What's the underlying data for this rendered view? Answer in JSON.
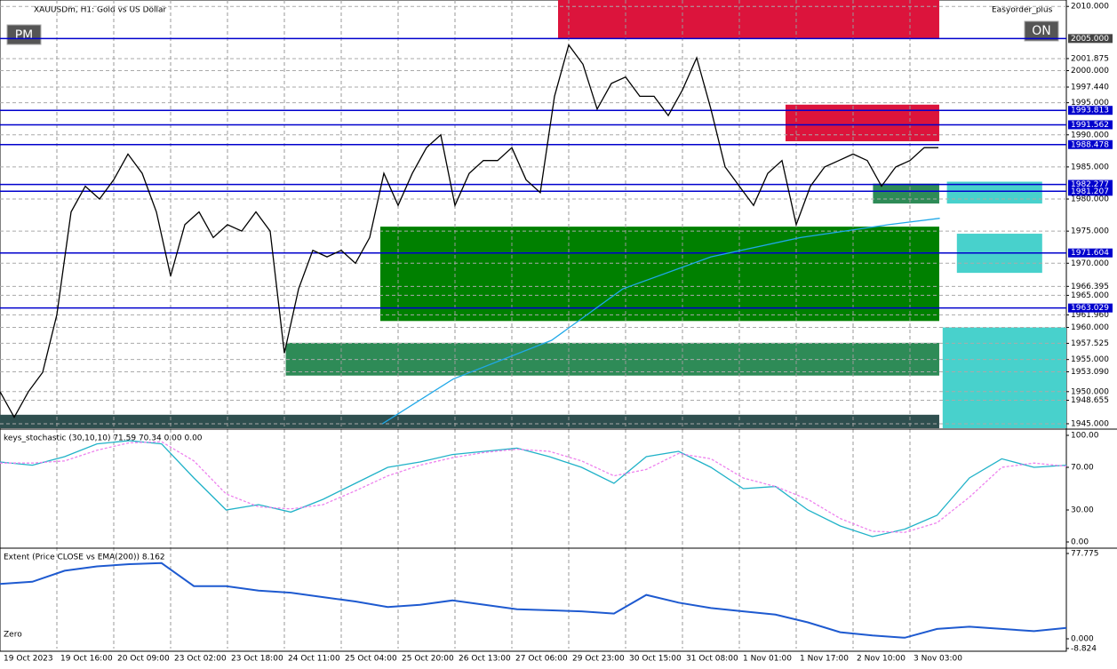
{
  "header": {
    "symbol_title": "XAUUSDm, H1: Gold vs US Dollar",
    "expert": "Easyorder_plus",
    "buttons": [
      "PM",
      "ON"
    ]
  },
  "chart_data": [
    {
      "type": "line",
      "xlim": [
        0,
        75
      ],
      "ylim": [
        1944.3,
        2011
      ],
      "grid": true,
      "series": [
        {
          "color": "#000000",
          "values": [
            1950,
            1946,
            1950,
            1953,
            1962,
            1978,
            1982,
            1980,
            1983,
            1987,
            1984,
            1978,
            1968,
            1976,
            1978,
            1974,
            1976,
            1975,
            1978,
            1975,
            1956,
            1966,
            1972,
            1971,
            1972,
            1970,
            1974,
            1984,
            1979,
            1984,
            1988,
            1990,
            1979,
            1984,
            1986,
            1986,
            1988,
            1983,
            1981,
            1996,
            2004,
            2001,
            1994,
            1998,
            1999,
            1996,
            1996,
            1993,
            1997,
            2002,
            1994,
            1985,
            1982,
            1979,
            1984,
            1986,
            1976,
            1982,
            1985,
            1986,
            1987,
            1986,
            1982,
            1985,
            1986,
            1988,
            1988
          ]
        },
        {
          "color": "#1fa8e8",
          "x": [
            26.9,
            31.9,
            38.8,
            43.8,
            50,
            56.3,
            62.5,
            66.1
          ],
          "values": [
            1945,
            1952,
            1958,
            1966,
            1971,
            1974,
            1976,
            1977
          ]
        }
      ],
      "yticks": [
        {
          "value": 2010,
          "label": "2010.000"
        },
        {
          "value": 2001.875,
          "label": "2001.875"
        },
        {
          "value": 2000,
          "label": "2000.000"
        },
        {
          "value": 1997.44,
          "label": "1997.440"
        },
        {
          "value": 1995,
          "label": "1995.000"
        },
        {
          "value": 1990,
          "label": "1990.000"
        },
        {
          "value": 1985,
          "label": "1985.000"
        },
        {
          "value": 1980,
          "label": "1980.000"
        },
        {
          "value": 1975,
          "label": "1975.000"
        },
        {
          "value": 1970,
          "label": "1970.000"
        },
        {
          "value": 1966.395,
          "label": "1966.395"
        },
        {
          "value": 1965,
          "label": "1965.000"
        },
        {
          "value": 1961.96,
          "label": "1961.960"
        },
        {
          "value": 1960,
          "label": "1960.000"
        },
        {
          "value": 1957.525,
          "label": "1957.525"
        },
        {
          "value": 1955,
          "label": "1955.000"
        },
        {
          "value": 1953.09,
          "label": "1953.090"
        },
        {
          "value": 1950,
          "label": "1950.000"
        },
        {
          "value": 1948.655,
          "label": "1948.655"
        },
        {
          "value": 1945,
          "label": "1945.000"
        }
      ],
      "hlines": [
        {
          "value": 2005,
          "label": "2005.000"
        },
        {
          "value": 1993.813,
          "label": "1993.813"
        },
        {
          "value": 1991.562,
          "label": "1991.562"
        },
        {
          "value": 1988.478,
          "label": "1988.478"
        },
        {
          "value": 1982.277,
          "label": "1982.277"
        },
        {
          "value": 1981.207,
          "label": "1981.207"
        },
        {
          "value": 1971.604,
          "label": "1971.604"
        },
        {
          "value": 1963.029,
          "label": "1963.029"
        }
      ],
      "zones": [
        {
          "x": [
            39.25,
            66.06
          ],
          "y": [
            2005,
            2011
          ],
          "color": "#dc143c"
        },
        {
          "x": [
            55.25,
            66.06
          ],
          "y": [
            1989,
            1994.7
          ],
          "color": "#dc143c"
        },
        {
          "x": [
            26.75,
            66.06
          ],
          "y": [
            1961,
            1975.7
          ],
          "color": "#008000"
        },
        {
          "x": [
            20.1,
            66.06
          ],
          "y": [
            1952.5,
            1957.6
          ],
          "color": "#2e8b57"
        },
        {
          "x": [
            0,
            66.06
          ],
          "y": [
            1944.3,
            1946.4
          ],
          "color": "#2f4f4f"
        },
        {
          "x": [
            61.4,
            66.06
          ],
          "y": [
            1979.3,
            1982.4
          ],
          "color": "#2e8b57"
        },
        {
          "x": [
            66.6,
            73.3
          ],
          "y": [
            1979.3,
            1982.7
          ],
          "color": "#48d1cc"
        },
        {
          "x": [
            67.3,
            73.3
          ],
          "y": [
            1968.5,
            1974.6
          ],
          "color": "#48d1cc"
        },
        {
          "x": [
            66.3,
            75
          ],
          "y": [
            1944.3,
            1960
          ],
          "color": "#48d1cc"
        }
      ],
      "xticks": [
        {
          "value": 0,
          "label": "19 Oct 2023"
        },
        {
          "value": 4,
          "label": "19 Oct 16:00"
        },
        {
          "value": 8,
          "label": "20 Oct 09:00"
        },
        {
          "value": 12,
          "label": "23 Oct 02:00"
        },
        {
          "value": 16,
          "label": "23 Oct 18:00"
        },
        {
          "value": 20,
          "label": "24 Oct 11:00"
        },
        {
          "value": 24,
          "label": "25 Oct 04:00"
        },
        {
          "value": 28,
          "label": "25 Oct 20:00"
        },
        {
          "value": 32,
          "label": "26 Oct 13:00"
        },
        {
          "value": 36,
          "label": "27 Oct 06:00"
        },
        {
          "value": 40,
          "label": "29 Oct 23:00"
        },
        {
          "value": 44,
          "label": "30 Oct 15:00"
        },
        {
          "value": 48,
          "label": "31 Oct 08:00"
        },
        {
          "value": 52,
          "label": "1 Nov 01:00"
        },
        {
          "value": 56,
          "label": "1 Nov 17:00"
        },
        {
          "value": 60,
          "label": "2 Nov 10:00"
        },
        {
          "value": 64,
          "label": "3 Nov 03:00"
        }
      ]
    },
    {
      "type": "line",
      "title": "keys_stochastic (30,10,10) 71.59 70.34 0.00 0.00",
      "xlim": [
        0,
        37.5
      ],
      "ylim": [
        -5,
        105
      ],
      "series": [
        {
          "color": "#20b2c8",
          "values": [
            75,
            72,
            80,
            92,
            95,
            92,
            60,
            30,
            35,
            28,
            40,
            55,
            70,
            75,
            82,
            85,
            88,
            80,
            70,
            55,
            80,
            85,
            70,
            50,
            52,
            30,
            15,
            5,
            12,
            25,
            60,
            78,
            70,
            72
          ]
        },
        {
          "color": "#ee82ee",
          "dashed": true,
          "values": [
            74,
            74,
            76,
            86,
            93,
            94,
            76,
            45,
            33,
            31,
            35,
            48,
            62,
            72,
            79,
            84,
            87,
            85,
            76,
            62,
            68,
            83,
            78,
            60,
            52,
            40,
            22,
            10,
            9,
            18,
            42,
            70,
            74,
            71
          ]
        }
      ],
      "yticks": [
        {
          "value": 100,
          "label": "100.00"
        },
        {
          "value": 70,
          "label": "70.00"
        },
        {
          "value": 30,
          "label": "30.00"
        },
        {
          "value": 0,
          "label": "0.00"
        }
      ]
    },
    {
      "type": "line",
      "title": "Extent (Price CLOSE vs EMA(200)) 8.162",
      "zero_label": "Zero",
      "xlim": [
        0,
        37.5
      ],
      "ylim": [
        -8.9,
        81.8
      ],
      "series": [
        {
          "color": "#1e5ad0",
          "values": [
            50,
            52,
            62,
            66,
            68,
            69,
            48,
            48,
            44,
            42,
            38,
            34,
            29,
            31,
            35,
            31,
            27,
            26,
            25,
            23,
            40,
            33,
            28,
            25,
            22,
            15,
            6,
            3,
            1,
            9,
            11,
            9,
            7,
            10
          ]
        }
      ],
      "yticks": [
        {
          "value": 77.775,
          "label": "77.775"
        },
        {
          "value": 0,
          "label": "0.000"
        },
        {
          "value": -8.824,
          "label": "-8.824"
        }
      ]
    }
  ]
}
